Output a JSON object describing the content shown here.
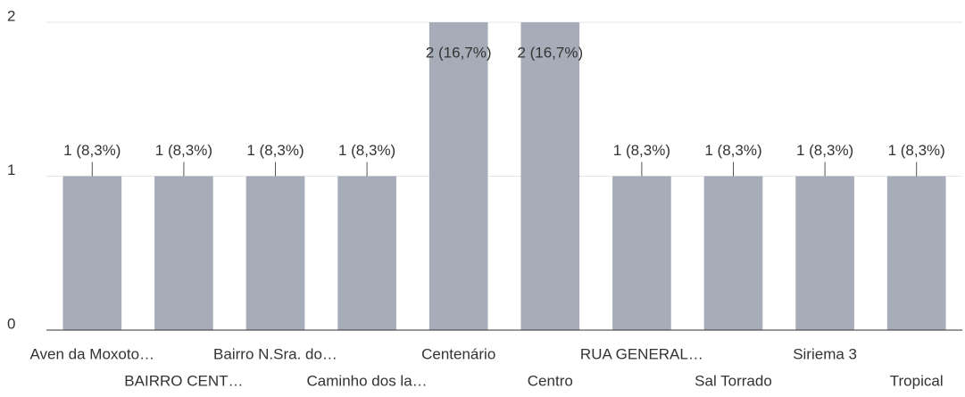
{
  "chart_data": {
    "type": "bar",
    "categories": [
      "Aven da Moxoto…",
      "BAIRRO CENT…",
      "Bairro N.Sra. do…",
      "Caminho dos la…",
      "Centenário",
      "Centro",
      "RUA GENERAL…",
      "Sal Torrado",
      "Siriema 3",
      "Tropical"
    ],
    "values": [
      1,
      1,
      1,
      1,
      2,
      2,
      1,
      1,
      1,
      1
    ],
    "value_labels": [
      "1 (8,3%)",
      "1 (8,3%)",
      "1 (8,3%)",
      "1 (8,3%)",
      "2 (16,7%)",
      "2 (16,7%)",
      "1 (8,3%)",
      "1 (8,3%)",
      "1 (8,3%)",
      "1 (8,3%)"
    ],
    "color": "#a7acb9",
    "ylim": [
      0,
      2
    ],
    "yticks": [
      0,
      1,
      2
    ],
    "grid": true
  }
}
